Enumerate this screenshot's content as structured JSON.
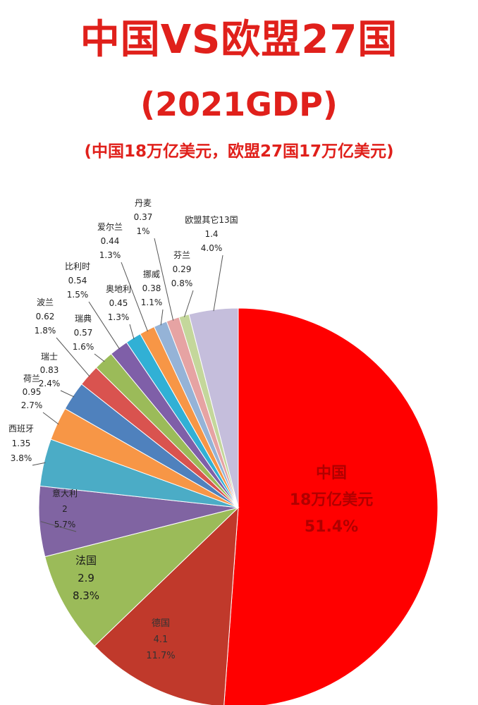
{
  "header": {
    "title": "中国VS欧盟27国",
    "subtitle": "(2021GDP)",
    "note": "(中国18万亿美元，欧盟27国17万亿美元)"
  },
  "chart_data": {
    "type": "pie",
    "title": "中国VS欧盟27国",
    "subtitle": "(2021GDP)",
    "slices": [
      {
        "label": "中国",
        "value_text": "18万亿美元",
        "value": 18,
        "percent": "51.4%",
        "color": "#ff0000"
      },
      {
        "label": "德国",
        "value_text": "4.1",
        "value": 4.1,
        "percent": "11.7%",
        "color": "#c0392b"
      },
      {
        "label": "法国",
        "value_text": "2.9",
        "value": 2.9,
        "percent": "8.3%",
        "color": "#9bbb59"
      },
      {
        "label": "意大利",
        "value_text": "2",
        "value": 2,
        "percent": "5.7%",
        "color": "#8064a2"
      },
      {
        "label": "西班牙",
        "value_text": "1.35",
        "value": 1.35,
        "percent": "3.8%",
        "color": "#4bacc6"
      },
      {
        "label": "荷兰",
        "value_text": "0.95",
        "value": 0.95,
        "percent": "2.7%",
        "color": "#f79646"
      },
      {
        "label": "瑞士",
        "value_text": "0.83",
        "value": 0.83,
        "percent": "2.4%",
        "color": "#4f81bd"
      },
      {
        "label": "波兰",
        "value_text": "0.62",
        "value": 0.62,
        "percent": "1.8%",
        "color": "#d9534f"
      },
      {
        "label": "瑞典",
        "value_text": "0.57",
        "value": 0.57,
        "percent": "1.6%",
        "color": "#9bbb59"
      },
      {
        "label": "比利时",
        "value_text": "0.54",
        "value": 0.54,
        "percent": "1.5%",
        "color": "#7f5fa8"
      },
      {
        "label": "奥地利",
        "value_text": "0.45",
        "value": 0.45,
        "percent": "1.3%",
        "color": "#31b0d5"
      },
      {
        "label": "爱尔兰",
        "value_text": "0.44",
        "value": 0.44,
        "percent": "1.3%",
        "color": "#f79646"
      },
      {
        "label": "挪威",
        "value_text": "0.38",
        "value": 0.38,
        "percent": "1.1%",
        "color": "#95b3d7"
      },
      {
        "label": "丹麦",
        "value_text": "0.37",
        "value": 0.37,
        "percent": "1%",
        "color": "#e6a3a3"
      },
      {
        "label": "芬兰",
        "value_text": "0.29",
        "value": 0.29,
        "percent": "0.8%",
        "color": "#c4d79b"
      },
      {
        "label": "欧盟其它13国",
        "value_text": "1.4",
        "value": 1.4,
        "percent": "4.0%",
        "color": "#c5bedc"
      }
    ]
  }
}
